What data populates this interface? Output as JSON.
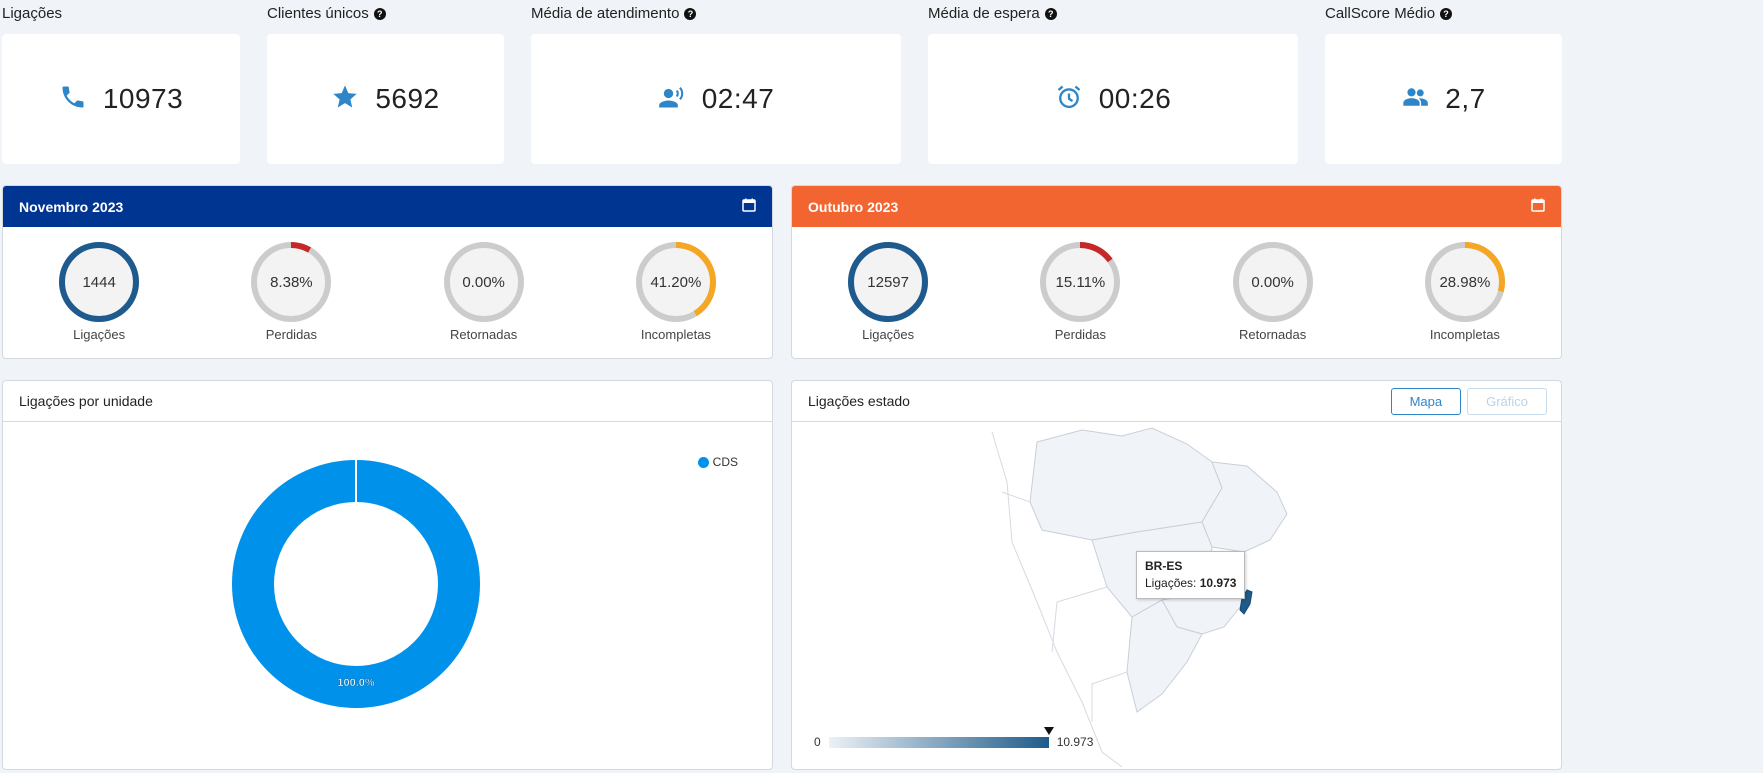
{
  "kpis": [
    {
      "title": "Ligações",
      "value": "10973",
      "icon": "phone-icon",
      "help": false
    },
    {
      "title": "Clientes únicos",
      "value": "5692",
      "icon": "star-icon",
      "help": true
    },
    {
      "title": "Média de atendimento",
      "value": "02:47",
      "icon": "speaking-person-icon",
      "help": true
    },
    {
      "title": "Média de espera",
      "value": "00:26",
      "icon": "alarm-clock-icon",
      "help": true
    },
    {
      "title": "CallScore Médio",
      "value": "2,7",
      "icon": "people-icon",
      "help": true
    }
  ],
  "months": [
    {
      "title": "Novembro 2023",
      "header_color": "#003591",
      "stats": [
        {
          "label": "Ligações",
          "value": "1444",
          "fraction": 1.0,
          "color": "#1f5a8f"
        },
        {
          "label": "Perdidas",
          "value": "8.38%",
          "fraction": 0.0838,
          "color": "#c62828"
        },
        {
          "label": "Retornadas",
          "value": "0.00%",
          "fraction": 0.0,
          "color": "#c8c8c8"
        },
        {
          "label": "Incompletas",
          "value": "41.20%",
          "fraction": 0.412,
          "color": "#f5a623"
        }
      ]
    },
    {
      "title": "Outubro 2023",
      "header_color": "#f26530",
      "stats": [
        {
          "label": "Ligações",
          "value": "12597",
          "fraction": 1.0,
          "color": "#1f5a8f"
        },
        {
          "label": "Perdidas",
          "value": "15.11%",
          "fraction": 0.1511,
          "color": "#c62828"
        },
        {
          "label": "Retornadas",
          "value": "0.00%",
          "fraction": 0.0,
          "color": "#c8c8c8"
        },
        {
          "label": "Incompletas",
          "value": "28.98%",
          "fraction": 0.2898,
          "color": "#f5a623"
        }
      ]
    }
  ],
  "unit_panel": {
    "title": "Ligações por unidade",
    "legend": "CDS",
    "slice_label": "100.0%",
    "slice_color": "#0091ea"
  },
  "state_panel": {
    "title": "Ligações estado",
    "btn_map": "Mapa",
    "btn_chart": "Gráfico",
    "tooltip_state": "BR-ES",
    "tooltip_label": "Ligações:",
    "tooltip_value": "10.973",
    "scale_min": "0",
    "scale_max": "10.973",
    "highlight_color": "#1e5b8a"
  }
}
